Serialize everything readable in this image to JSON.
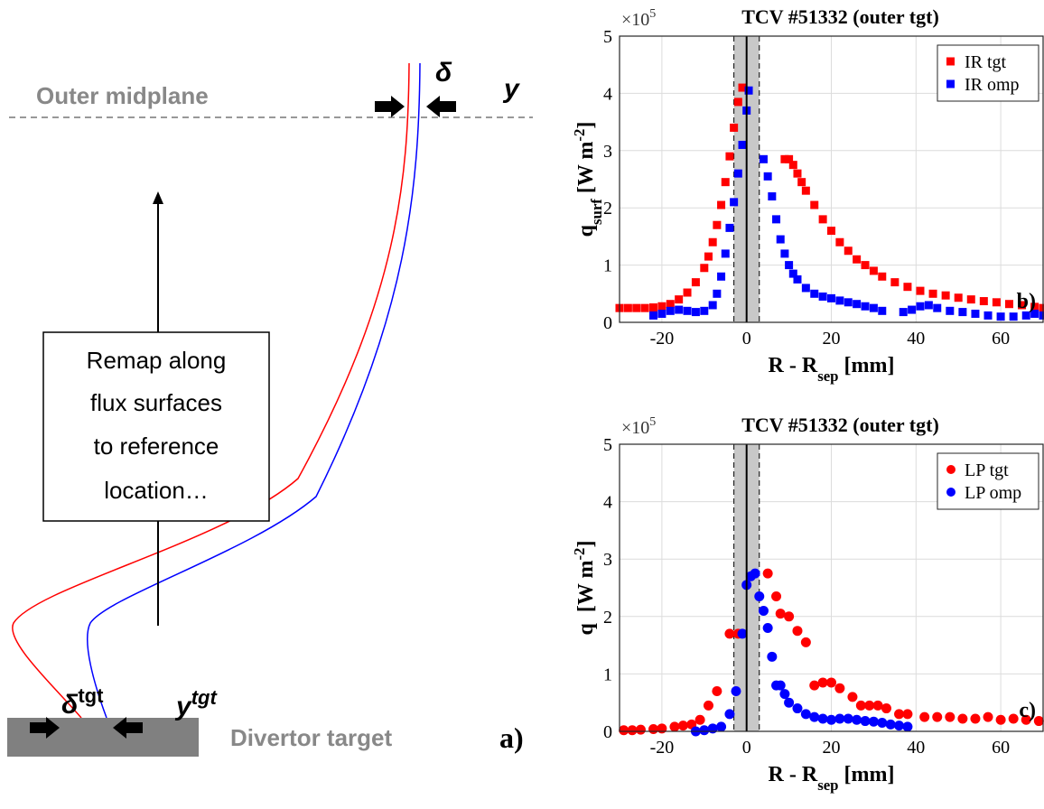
{
  "diagram": {
    "midplane_label": "Outer midplane",
    "delta": "δ",
    "y": "y",
    "box_lines": [
      "Remap along",
      "flux surfaces",
      "to reference",
      "location…"
    ],
    "delta_tgt": "δ",
    "delta_tgt_sup": "tgt",
    "y_tgt": "y",
    "y_tgt_sup": "tgt",
    "target_label": "Divertor target",
    "panel": "a)"
  },
  "chart_data": [
    {
      "type": "scatter",
      "title": "TCV #51332 (outer tgt)",
      "scale_label": "×10",
      "scale_exponent": "5",
      "panel": "b)",
      "ylabel": [
        {
          "text": "q"
        },
        {
          "text": "surf",
          "pos": "sub"
        },
        {
          "text": " [W m"
        },
        {
          "text": "-2",
          "pos": "super"
        },
        {
          "text": "]"
        }
      ],
      "xlabel": [
        {
          "text": "R - R"
        },
        {
          "text": "sep",
          "pos": "sub"
        },
        {
          "text": " [mm]"
        }
      ],
      "xlim": [
        -30,
        70
      ],
      "ylim": [
        0,
        5
      ],
      "xticks": [
        -20,
        0,
        20,
        40,
        60
      ],
      "yticks": [
        0,
        1,
        2,
        3,
        4,
        5
      ],
      "grid": true,
      "legend": "upper right",
      "marker": "square",
      "band": [
        -3,
        3
      ],
      "separatrix": 0,
      "series": [
        {
          "name": "IR tgt",
          "color": "#ff0000",
          "x": [
            -30,
            -28,
            -26,
            -24,
            -22,
            -20,
            -18,
            -16,
            -14,
            -12,
            -10,
            -9,
            -8,
            -7,
            -6,
            -5,
            -4,
            -3,
            -2,
            -1,
            9,
            10,
            11,
            12,
            13,
            14,
            16,
            18,
            20,
            22,
            24,
            26,
            28,
            30,
            32,
            35,
            38,
            41,
            44,
            47,
            50,
            53,
            56,
            59,
            62,
            65,
            68,
            70
          ],
          "values": [
            0.25,
            0.25,
            0.25,
            0.25,
            0.26,
            0.28,
            0.32,
            0.4,
            0.52,
            0.7,
            0.95,
            1.15,
            1.4,
            1.7,
            2.05,
            2.45,
            2.9,
            3.4,
            3.85,
            4.1,
            2.85,
            2.85,
            2.75,
            2.6,
            2.45,
            2.3,
            2.05,
            1.8,
            1.6,
            1.4,
            1.25,
            1.1,
            1.0,
            0.9,
            0.8,
            0.7,
            0.62,
            0.55,
            0.5,
            0.47,
            0.43,
            0.4,
            0.37,
            0.35,
            0.32,
            0.3,
            0.27,
            0.25
          ]
        },
        {
          "name": "IR omp",
          "color": "#0000ff",
          "x": [
            -22,
            -20,
            -18,
            -16,
            -14,
            -12,
            -10,
            -8,
            -7,
            -6,
            -5,
            -4,
            -3,
            -2,
            -1,
            0,
            0.5,
            4,
            5,
            6,
            7,
            8,
            9,
            10,
            11,
            12,
            14,
            16,
            18,
            20,
            22,
            24,
            26,
            28,
            30,
            32,
            37,
            39,
            41,
            43,
            45,
            48,
            51,
            54,
            57,
            60,
            63,
            66,
            68,
            70
          ],
          "values": [
            0.12,
            0.15,
            0.2,
            0.22,
            0.2,
            0.18,
            0.2,
            0.3,
            0.5,
            0.8,
            1.2,
            1.65,
            2.1,
            2.6,
            3.1,
            3.7,
            4.05,
            2.85,
            2.55,
            2.2,
            1.8,
            1.45,
            1.2,
            1.0,
            0.85,
            0.75,
            0.6,
            0.5,
            0.45,
            0.42,
            0.38,
            0.35,
            0.32,
            0.28,
            0.25,
            0.2,
            0.18,
            0.22,
            0.28,
            0.3,
            0.25,
            0.2,
            0.18,
            0.15,
            0.12,
            0.1,
            0.1,
            0.12,
            0.15,
            0.12
          ]
        }
      ]
    },
    {
      "type": "scatter",
      "title": "TCV #51332 (outer tgt)",
      "scale_label": "×10",
      "scale_exponent": "5",
      "panel": "c)",
      "ylabel": [
        {
          "text": "q"
        },
        {
          "text": "  [W m"
        },
        {
          "text": "-2",
          "pos": "super"
        },
        {
          "text": "]"
        }
      ],
      "xlabel": [
        {
          "text": "R - R"
        },
        {
          "text": "sep",
          "pos": "sub"
        },
        {
          "text": " [mm]"
        }
      ],
      "xlim": [
        -30,
        70
      ],
      "ylim": [
        0,
        5
      ],
      "xticks": [
        -20,
        0,
        20,
        40,
        60
      ],
      "yticks": [
        0,
        1,
        2,
        3,
        4,
        5
      ],
      "grid": true,
      "legend": "upper right",
      "marker": "circle",
      "band": [
        -3,
        3
      ],
      "separatrix": 0,
      "series": [
        {
          "name": "LP tgt",
          "color": "#ff0000",
          "x": [
            -29,
            -27,
            -25,
            -22,
            -20,
            -17,
            -15,
            -13,
            -11,
            -9,
            -7,
            -4,
            -2,
            5,
            7,
            8,
            10,
            12,
            14,
            16,
            18,
            20,
            22,
            25,
            27,
            29,
            31,
            33,
            36,
            38,
            42,
            45,
            48,
            51,
            54,
            57,
            60,
            63,
            66,
            69
          ],
          "values": [
            0.02,
            0.02,
            0.03,
            0.04,
            0.05,
            0.08,
            0.1,
            0.12,
            0.2,
            0.45,
            0.7,
            1.7,
            1.7,
            2.75,
            2.35,
            2.05,
            2.0,
            1.75,
            1.55,
            0.8,
            0.85,
            0.85,
            0.75,
            0.6,
            0.45,
            0.45,
            0.45,
            0.4,
            0.3,
            0.3,
            0.25,
            0.25,
            0.25,
            0.22,
            0.22,
            0.25,
            0.2,
            0.22,
            0.2,
            0.18
          ]
        },
        {
          "name": "LP omp",
          "color": "#0000ff",
          "x": [
            -12,
            -10,
            -8,
            -6,
            -4,
            -2.5,
            -1,
            0,
            1,
            2,
            3,
            4,
            5,
            6,
            7,
            8,
            9,
            10,
            12,
            14,
            16,
            18,
            20,
            22,
            24,
            26,
            28,
            30,
            32,
            34,
            36,
            38
          ],
          "values": [
            0,
            0.02,
            0.05,
            0.08,
            0.3,
            0.7,
            1.7,
            2.55,
            2.7,
            2.75,
            2.35,
            2.1,
            1.8,
            1.3,
            0.8,
            0.8,
            0.65,
            0.5,
            0.4,
            0.3,
            0.25,
            0.22,
            0.2,
            0.22,
            0.22,
            0.2,
            0.18,
            0.17,
            0.15,
            0.12,
            0.1,
            0.08
          ]
        }
      ]
    }
  ]
}
